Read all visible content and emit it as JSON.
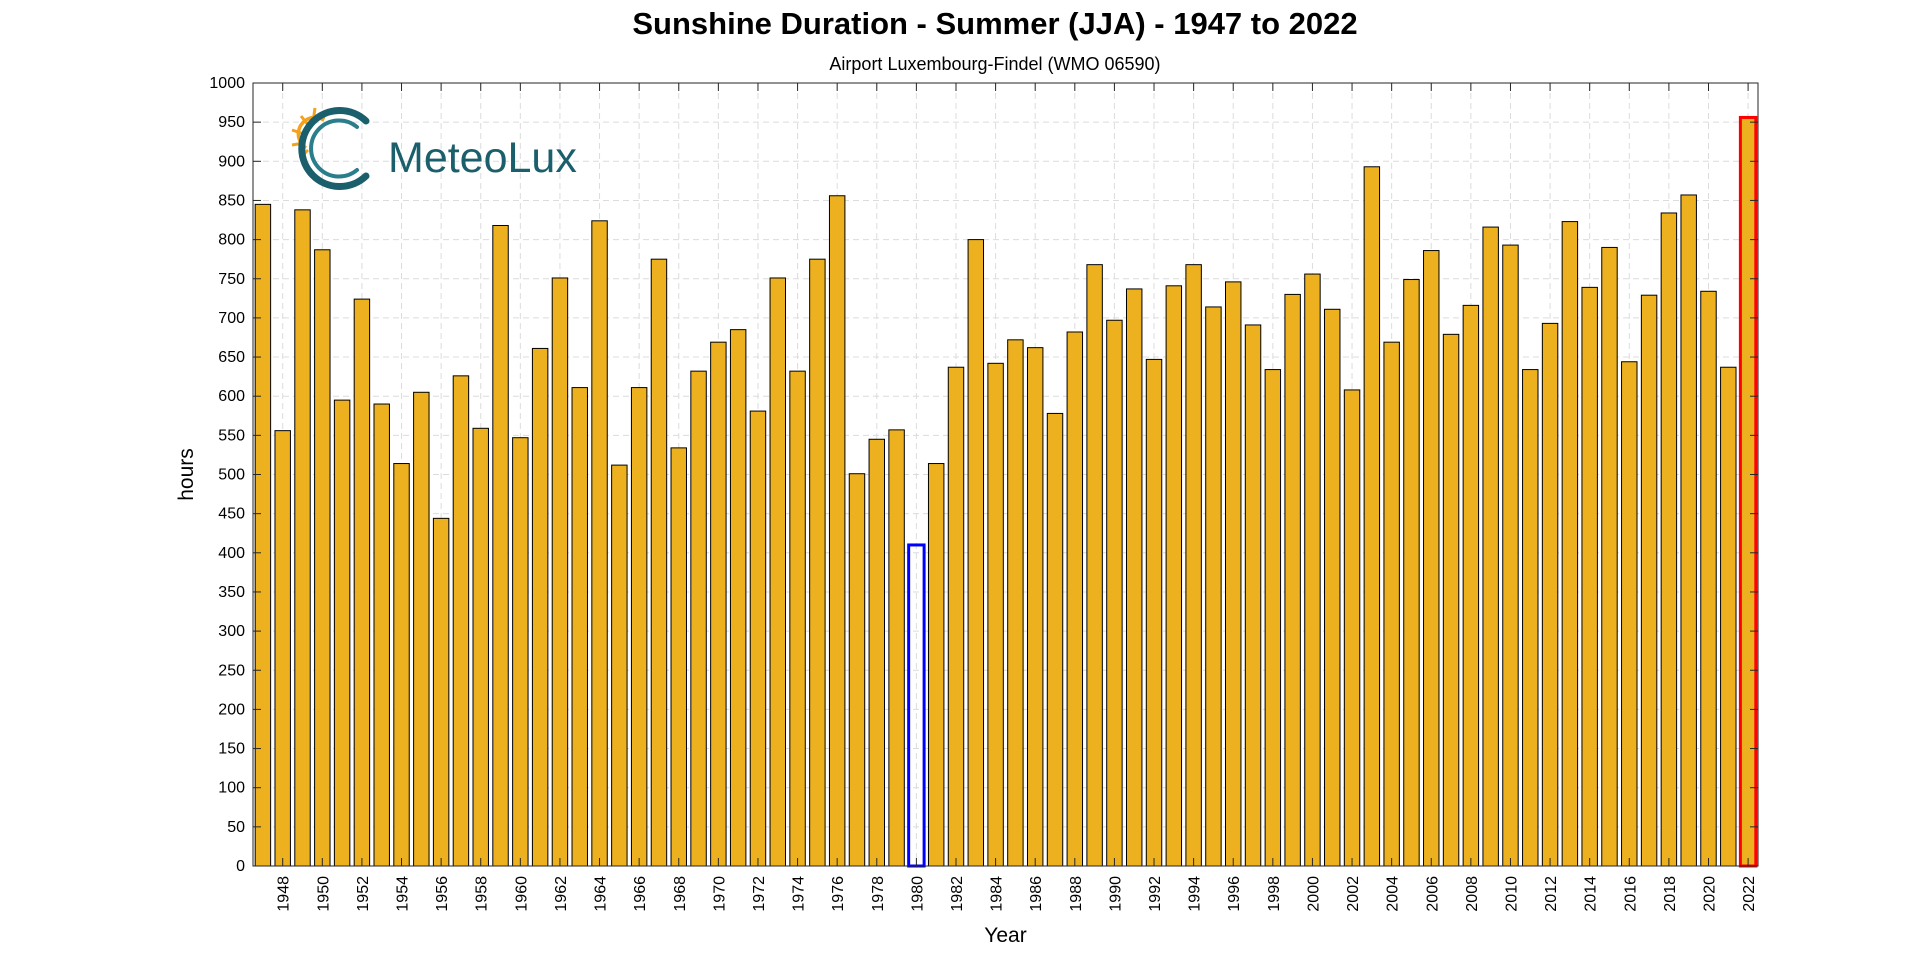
{
  "chart_data": {
    "type": "bar",
    "title": "Sunshine Duration - Summer (JJA) - 1947 to 2022",
    "subtitle": "Airport Luxembourg-Findel (WMO 06590)",
    "xlabel": "Year",
    "ylabel": "hours",
    "ylim": [
      0,
      1000
    ],
    "yticks": [
      0,
      50,
      100,
      150,
      200,
      250,
      300,
      350,
      400,
      450,
      500,
      550,
      600,
      650,
      700,
      750,
      800,
      850,
      900,
      950,
      1000
    ],
    "xtick_labels": [
      "1948",
      "1950",
      "1952",
      "1954",
      "1956",
      "1958",
      "1960",
      "1962",
      "1964",
      "1966",
      "1968",
      "1970",
      "1972",
      "1974",
      "1976",
      "1978",
      "1980",
      "1982",
      "1984",
      "1986",
      "1988",
      "1990",
      "1992",
      "1994",
      "1996",
      "1998",
      "2000",
      "2002",
      "2004",
      "2006",
      "2008",
      "2010",
      "2012",
      "2014",
      "2016",
      "2018",
      "2020",
      "2022"
    ],
    "grid": true,
    "bar_color": "#EDB120",
    "min_highlight": {
      "year": 1980,
      "color": "#0000FF"
    },
    "max_highlight": {
      "year": 2022,
      "color": "#FF0000"
    },
    "categories": [
      1947,
      1948,
      1949,
      1950,
      1951,
      1952,
      1953,
      1954,
      1955,
      1956,
      1957,
      1958,
      1959,
      1960,
      1961,
      1962,
      1963,
      1964,
      1965,
      1966,
      1967,
      1968,
      1969,
      1970,
      1971,
      1972,
      1973,
      1974,
      1975,
      1976,
      1977,
      1978,
      1979,
      1980,
      1981,
      1982,
      1983,
      1984,
      1985,
      1986,
      1987,
      1988,
      1989,
      1990,
      1991,
      1992,
      1993,
      1994,
      1995,
      1996,
      1997,
      1998,
      1999,
      2000,
      2001,
      2002,
      2003,
      2004,
      2005,
      2006,
      2007,
      2008,
      2009,
      2010,
      2011,
      2012,
      2013,
      2014,
      2015,
      2016,
      2017,
      2018,
      2019,
      2020,
      2021,
      2022
    ],
    "values": [
      845,
      556,
      838,
      787,
      595,
      724,
      590,
      514,
      605,
      444,
      626,
      559,
      818,
      547,
      661,
      751,
      611,
      824,
      512,
      611,
      775,
      534,
      632,
      669,
      685,
      581,
      751,
      632,
      775,
      856,
      501,
      545,
      557,
      410,
      514,
      637,
      800,
      642,
      672,
      662,
      578,
      682,
      768,
      697,
      737,
      647,
      741,
      768,
      714,
      746,
      691,
      634,
      730,
      756,
      711,
      608,
      893,
      669,
      749,
      786,
      679,
      716,
      816,
      793,
      634,
      693,
      823,
      739,
      790,
      644,
      729,
      834,
      857,
      734,
      637,
      956
    ]
  },
  "logo": {
    "text": "MeteoLux",
    "sun_color": "#F4A21E",
    "brand_color": "#1a5f6b"
  }
}
